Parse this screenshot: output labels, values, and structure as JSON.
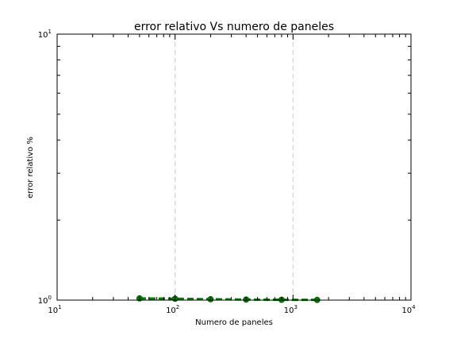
{
  "chart_data": {
    "type": "line",
    "title": "error relativo Vs numero de paneles",
    "xlabel": "Numero de paneles",
    "ylabel": "error relativo %",
    "xscale": "log",
    "yscale": "log",
    "xlim": [
      10,
      10000
    ],
    "ylim": [
      1,
      10
    ],
    "x_ticks": [
      {
        "value": 10,
        "base": "10",
        "exp": "1"
      },
      {
        "value": 100,
        "base": "10",
        "exp": "2"
      },
      {
        "value": 1000,
        "base": "10",
        "exp": "3"
      },
      {
        "value": 10000,
        "base": "10",
        "exp": "4"
      }
    ],
    "y_ticks": [
      {
        "value": 1,
        "base": "10",
        "exp": "0"
      },
      {
        "value": 10,
        "base": "10",
        "exp": "1"
      }
    ],
    "grid": "x-major-dashed",
    "series": [
      {
        "color": "#008000",
        "linestyle": "dashed",
        "marker": "circle",
        "x": [
          50,
          100,
          200,
          400,
          800,
          1600
        ],
        "y": [
          1.015,
          1.012,
          1.008,
          1.005,
          1.003,
          1.002
        ]
      }
    ]
  }
}
